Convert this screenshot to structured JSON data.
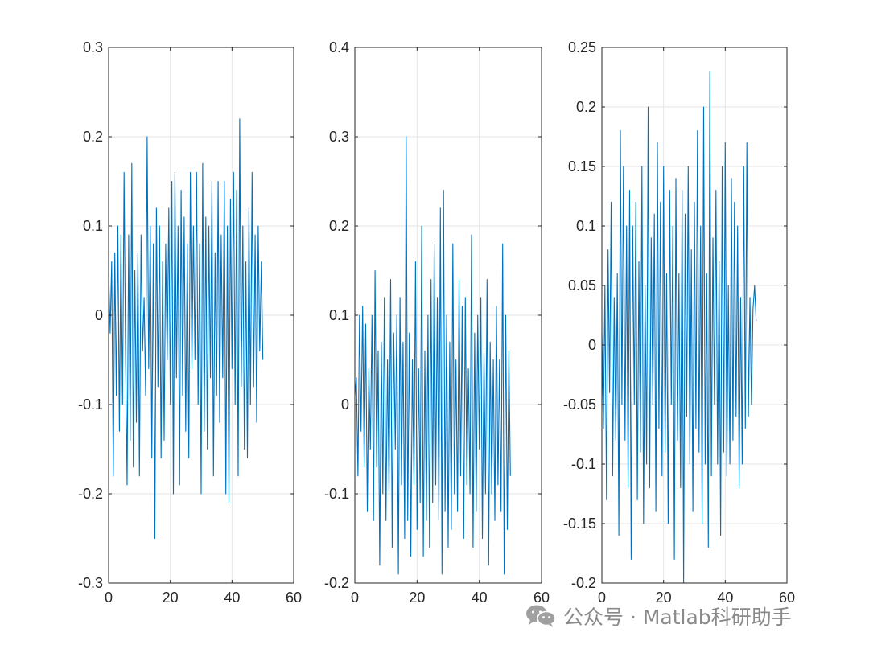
{
  "colors": {
    "series": "#0072BD",
    "grid": "#e6e6e6",
    "axis": "#262626",
    "watermark": "#8a8a8a"
  },
  "watermark": {
    "text": "公众号 · Matlab科研助手",
    "icon": "wechat-logo-icon"
  },
  "chart_data": [
    {
      "type": "line",
      "title": "",
      "xlabel": "",
      "ylabel": "",
      "xlim": [
        0,
        60
      ],
      "ylim": [
        -0.3,
        0.3
      ],
      "xticks": [
        0,
        20,
        40,
        60
      ],
      "yticks": [
        -0.3,
        -0.2,
        -0.1,
        0,
        0.1,
        0.2,
        0.3
      ],
      "ytick_labels": [
        "-0.3",
        "-0.2",
        "-0.1",
        "0",
        "0.1",
        "0.2",
        "0.3"
      ],
      "grid": true,
      "series": [
        {
          "x": [
            0,
            0.5,
            1,
            1.5,
            2,
            2.5,
            3,
            3.5,
            4,
            4.5,
            5,
            5.5,
            6,
            6.5,
            7,
            7.5,
            8,
            8.5,
            9,
            9.5,
            10,
            10.5,
            11,
            11.5,
            12,
            12.5,
            13,
            13.5,
            14,
            14.5,
            15,
            15.5,
            16,
            16.5,
            17,
            17.5,
            18,
            18.5,
            19,
            19.5,
            20,
            20.5,
            21,
            21.5,
            22,
            22.5,
            23,
            23.5,
            24,
            24.5,
            25,
            25.5,
            26,
            26.5,
            27,
            27.5,
            28,
            28.5,
            29,
            29.5,
            30,
            30.5,
            31,
            31.5,
            32,
            32.5,
            33,
            33.5,
            34,
            34.5,
            35,
            35.5,
            36,
            36.5,
            37,
            37.5,
            38,
            38.5,
            39,
            39.5,
            40,
            40.5,
            41,
            41.5,
            42,
            42.5,
            43,
            43.5,
            44,
            44.5,
            45,
            45.5,
            46,
            46.5,
            47,
            47.5,
            48,
            48.5,
            49,
            49.5,
            50
          ],
          "y": [
            0.05,
            -0.02,
            0.06,
            -0.18,
            0.07,
            -0.09,
            0.1,
            -0.13,
            0.09,
            -0.1,
            0.16,
            -0.05,
            -0.19,
            0.09,
            -0.14,
            0.17,
            -0.17,
            0.05,
            -0.12,
            0.07,
            -0.18,
            0.09,
            -0.04,
            0.02,
            -0.09,
            0.2,
            -0.06,
            0.1,
            -0.16,
            0.08,
            -0.25,
            0.12,
            -0.08,
            0.1,
            -0.16,
            0.06,
            -0.14,
            0.08,
            -0.05,
            0.12,
            -0.1,
            0.15,
            -0.2,
            0.16,
            -0.07,
            0.1,
            -0.19,
            0.14,
            -0.09,
            0.11,
            -0.13,
            0.08,
            -0.16,
            0.16,
            -0.06,
            0.1,
            -0.05,
            0.16,
            -0.1,
            0.08,
            -0.2,
            0.17,
            -0.13,
            0.11,
            -0.15,
            0.1,
            -0.07,
            0.15,
            -0.18,
            0.07,
            -0.09,
            0.15,
            -0.12,
            0.09,
            -0.07,
            0.15,
            -0.2,
            0.1,
            -0.21,
            0.13,
            -0.06,
            0.16,
            -0.1,
            0.14,
            -0.18,
            0.22,
            -0.08,
            0.1,
            -0.15,
            0.06,
            -0.16,
            0.12,
            -0.1,
            0.16,
            -0.08,
            0.09,
            -0.12,
            0.1,
            -0.04,
            0.06,
            -0.05
          ]
        }
      ]
    },
    {
      "type": "line",
      "title": "",
      "xlabel": "",
      "ylabel": "",
      "xlim": [
        0,
        60
      ],
      "ylim": [
        -0.2,
        0.4
      ],
      "xticks": [
        0,
        20,
        40,
        60
      ],
      "yticks": [
        -0.2,
        -0.1,
        0,
        0.1,
        0.2,
        0.3,
        0.4
      ],
      "ytick_labels": [
        "-0.2",
        "-0.1",
        "0",
        "0.1",
        "0.2",
        "0.3",
        "0.4"
      ],
      "grid": true,
      "series": [
        {
          "x": [
            0,
            0.5,
            1,
            1.5,
            2,
            2.5,
            3,
            3.5,
            4,
            4.5,
            5,
            5.5,
            6,
            6.5,
            7,
            7.5,
            8,
            8.5,
            9,
            9.5,
            10,
            10.5,
            11,
            11.5,
            12,
            12.5,
            13,
            13.5,
            14,
            14.5,
            15,
            15.5,
            16,
            16.5,
            17,
            17.5,
            18,
            18.5,
            19,
            19.5,
            20,
            20.5,
            21,
            21.5,
            22,
            22.5,
            23,
            23.5,
            24,
            24.5,
            25,
            25.5,
            26,
            26.5,
            27,
            27.5,
            28,
            28.5,
            29,
            29.5,
            30,
            30.5,
            31,
            31.5,
            32,
            32.5,
            33,
            33.5,
            34,
            34.5,
            35,
            35.5,
            36,
            36.5,
            37,
            37.5,
            38,
            38.5,
            39,
            39.5,
            40,
            40.5,
            41,
            41.5,
            42,
            42.5,
            43,
            43.5,
            44,
            44.5,
            45,
            45.5,
            46,
            46.5,
            47,
            47.5,
            48,
            48.5,
            49,
            49.5,
            50
          ],
          "y": [
            0.01,
            0.03,
            -0.08,
            0.1,
            -0.03,
            0.11,
            -0.07,
            0.09,
            -0.12,
            0.04,
            -0.05,
            0.1,
            -0.13,
            0.15,
            -0.07,
            0.06,
            -0.18,
            0.07,
            -0.1,
            0.12,
            -0.13,
            0.05,
            -0.1,
            0.14,
            -0.16,
            0.08,
            -0.05,
            0.1,
            -0.19,
            0.12,
            -0.09,
            0.07,
            -0.15,
            0.3,
            -0.13,
            0.08,
            -0.17,
            0.05,
            -0.09,
            0.16,
            -0.14,
            0.04,
            -0.11,
            0.2,
            -0.17,
            0.06,
            -0.13,
            0.1,
            -0.16,
            0.14,
            -0.11,
            0.18,
            -0.09,
            0.12,
            -0.13,
            0.22,
            -0.19,
            0.24,
            -0.12,
            0.1,
            -0.16,
            0.07,
            -0.14,
            0.18,
            -0.1,
            0.05,
            -0.12,
            0.14,
            -0.08,
            0.11,
            -0.15,
            0.12,
            -0.09,
            0.04,
            -0.1,
            0.19,
            -0.16,
            0.08,
            -0.12,
            0.1,
            -0.05,
            0.12,
            -0.15,
            0.06,
            -0.1,
            0.14,
            -0.18,
            0.07,
            -0.1,
            0.05,
            -0.13,
            0.11,
            -0.09,
            0.05,
            -0.12,
            0.18,
            -0.19,
            0.1,
            -0.14,
            0.06,
            -0.08
          ]
        }
      ]
    },
    {
      "type": "line",
      "title": "",
      "xlabel": "",
      "ylabel": "",
      "xlim": [
        0,
        60
      ],
      "ylim": [
        -0.2,
        0.25
      ],
      "xticks": [
        0,
        20,
        40,
        60
      ],
      "yticks": [
        -0.2,
        -0.15,
        -0.1,
        -0.05,
        0,
        0.05,
        0.1,
        0.15,
        0.2,
        0.25
      ],
      "ytick_labels": [
        "-0.2",
        "-0.15",
        "-0.1",
        "-0.05",
        "0",
        "0.05",
        "0.1",
        "0.15",
        "0.2",
        "0.25"
      ],
      "grid": true,
      "series": [
        {
          "x": [
            0,
            0.5,
            1,
            1.5,
            2,
            2.5,
            3,
            3.5,
            4,
            4.5,
            5,
            5.5,
            6,
            6.5,
            7,
            7.5,
            8,
            8.5,
            9,
            9.5,
            10,
            10.5,
            11,
            11.5,
            12,
            12.5,
            13,
            13.5,
            14,
            14.5,
            15,
            15.5,
            16,
            16.5,
            17,
            17.5,
            18,
            18.5,
            19,
            19.5,
            20,
            20.5,
            21,
            21.5,
            22,
            22.5,
            23,
            23.5,
            24,
            24.5,
            25,
            25.5,
            26,
            26.5,
            27,
            27.5,
            28,
            28.5,
            29,
            29.5,
            30,
            30.5,
            31,
            31.5,
            32,
            32.5,
            33,
            33.5,
            34,
            34.5,
            35,
            35.5,
            36,
            36.5,
            37,
            37.5,
            38,
            38.5,
            39,
            39.5,
            40,
            40.5,
            41,
            41.5,
            42,
            42.5,
            43,
            43.5,
            44,
            44.5,
            45,
            45.5,
            46,
            46.5,
            47,
            47.5,
            48,
            48.5,
            49,
            49.5,
            50
          ],
          "y": [
            0.01,
            -0.07,
            0.05,
            -0.13,
            0.08,
            -0.04,
            0.12,
            -0.11,
            0.04,
            -0.08,
            0.06,
            -0.16,
            0.18,
            -0.05,
            0.15,
            -0.08,
            0.1,
            -0.12,
            0.13,
            -0.18,
            0.1,
            -0.05,
            0.12,
            -0.13,
            0.07,
            -0.09,
            0.15,
            -0.15,
            0.05,
            -0.1,
            0.2,
            -0.12,
            0.09,
            -0.05,
            0.11,
            -0.14,
            0.17,
            -0.07,
            0.12,
            -0.11,
            0.15,
            -0.09,
            0.06,
            -0.15,
            0.13,
            -0.05,
            0.1,
            -0.18,
            0.14,
            -0.08,
            0.06,
            -0.12,
            0.13,
            -0.2,
            0.11,
            -0.06,
            0.15,
            -0.1,
            0.08,
            -0.14,
            0.12,
            -0.07,
            0.18,
            -0.09,
            0.1,
            -0.15,
            0.2,
            -0.1,
            0.06,
            -0.17,
            0.23,
            -0.11,
            0.09,
            -0.05,
            0.13,
            -0.1,
            0.07,
            -0.16,
            0.15,
            -0.09,
            0.17,
            -0.11,
            0.05,
            -0.1,
            0.14,
            -0.08,
            0.12,
            -0.06,
            0.1,
            -0.12,
            0.04,
            -0.1,
            0.15,
            -0.07,
            0.17,
            -0.06,
            0.04,
            -0.05,
            0.03,
            0.05,
            0.02
          ]
        }
      ]
    }
  ]
}
